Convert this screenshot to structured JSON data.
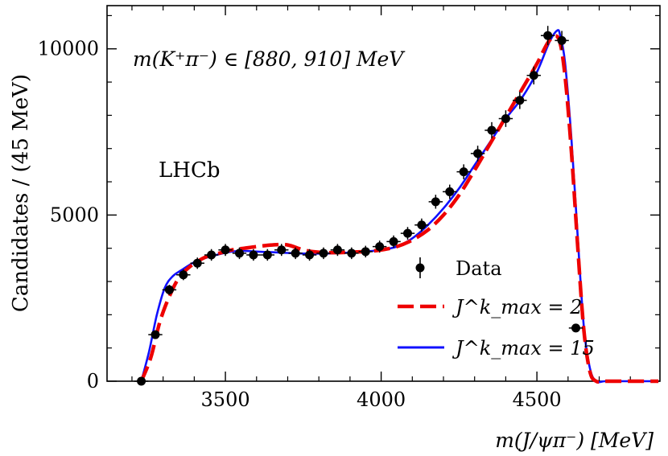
{
  "chart_data": {
    "type": "scatter",
    "xlabel": "m(J/ψπ⁻) [MeV]",
    "ylabel": "Candidates / (45 MeV)",
    "xlim": [
      3120,
      4895
    ],
    "ylim": [
      0,
      11300
    ],
    "x_ticks": [
      3500,
      4000,
      4500
    ],
    "y_ticks": [
      0,
      5000,
      10000
    ],
    "annotation_range": "m(K⁺π⁻) ∈ [880, 910] MeV",
    "experiment_label": "LHCb",
    "legend": {
      "placement": "bottom-right",
      "entries": [
        {
          "label": "Data",
          "style": "points",
          "color": "#000000"
        },
        {
          "label": "J^k_max = 2",
          "style": "dashed",
          "color": "#ee0000"
        },
        {
          "label": "J^k_max = 15",
          "style": "solid",
          "color": "#1010ff"
        }
      ]
    },
    "series": [
      {
        "name": "Data",
        "x": [
          3230,
          3275,
          3320,
          3365,
          3410,
          3455,
          3500,
          3545,
          3590,
          3635,
          3680,
          3725,
          3770,
          3815,
          3860,
          3905,
          3950,
          3995,
          4040,
          4085,
          4130,
          4175,
          4220,
          4265,
          4310,
          4355,
          4400,
          4445,
          4490,
          4535,
          4580,
          4625
        ],
        "y": [
          0,
          1400,
          2750,
          3200,
          3550,
          3800,
          3950,
          3850,
          3800,
          3800,
          3950,
          3850,
          3800,
          3850,
          3950,
          3850,
          3900,
          4050,
          4200,
          4450,
          4700,
          5400,
          5700,
          6300,
          6850,
          7550,
          7900,
          8450,
          9200,
          10400,
          10250,
          1600
        ],
        "yerr": [
          60,
          110,
          150,
          160,
          170,
          175,
          180,
          175,
          175,
          175,
          180,
          175,
          175,
          175,
          180,
          175,
          175,
          180,
          185,
          190,
          195,
          210,
          215,
          225,
          235,
          245,
          250,
          260,
          270,
          290,
          290,
          120
        ]
      },
      {
        "name": "J^k_max = 2",
        "style": "dashed",
        "color": "#ee0000",
        "x": [
          3230,
          3260,
          3290,
          3320,
          3350,
          3380,
          3410,
          3440,
          3480,
          3520,
          3560,
          3600,
          3650,
          3700,
          3750,
          3800,
          3850,
          3900,
          3950,
          4000,
          4050,
          4100,
          4150,
          4200,
          4250,
          4300,
          4350,
          4400,
          4450,
          4500,
          4540,
          4570,
          4590,
          4610,
          4630,
          4650,
          4670,
          4690,
          4720,
          4780,
          4890
        ],
        "y": [
          0,
          700,
          1800,
          2550,
          3100,
          3400,
          3600,
          3750,
          3850,
          3950,
          4000,
          4050,
          4100,
          4100,
          3950,
          3880,
          3870,
          3880,
          3900,
          3950,
          4050,
          4250,
          4550,
          5000,
          5600,
          6350,
          7150,
          7950,
          8750,
          9550,
          10250,
          10300,
          9200,
          7000,
          4200,
          1600,
          300,
          0,
          0,
          0,
          0
        ]
      },
      {
        "name": "J^k_max = 15",
        "style": "solid",
        "color": "#1010ff",
        "x": [
          3230,
          3255,
          3280,
          3305,
          3330,
          3360,
          3400,
          3440,
          3480,
          3520,
          3560,
          3600,
          3650,
          3700,
          3750,
          3800,
          3850,
          3900,
          3950,
          4000,
          4050,
          4100,
          4150,
          4200,
          4250,
          4300,
          4350,
          4400,
          4450,
          4500,
          4540,
          4565,
          4575,
          4590,
          4610,
          4630,
          4650,
          4670,
          4690,
          4720,
          4780,
          4890
        ],
        "y": [
          0,
          900,
          2000,
          2800,
          3150,
          3350,
          3580,
          3720,
          3820,
          3900,
          3920,
          3900,
          3880,
          3860,
          3840,
          3840,
          3850,
          3870,
          3900,
          3950,
          4050,
          4300,
          4700,
          5200,
          5800,
          6500,
          7200,
          7900,
          8500,
          9300,
          10200,
          10550,
          10400,
          9600,
          7400,
          4500,
          1700,
          400,
          0,
          0,
          0,
          0
        ]
      }
    ]
  }
}
